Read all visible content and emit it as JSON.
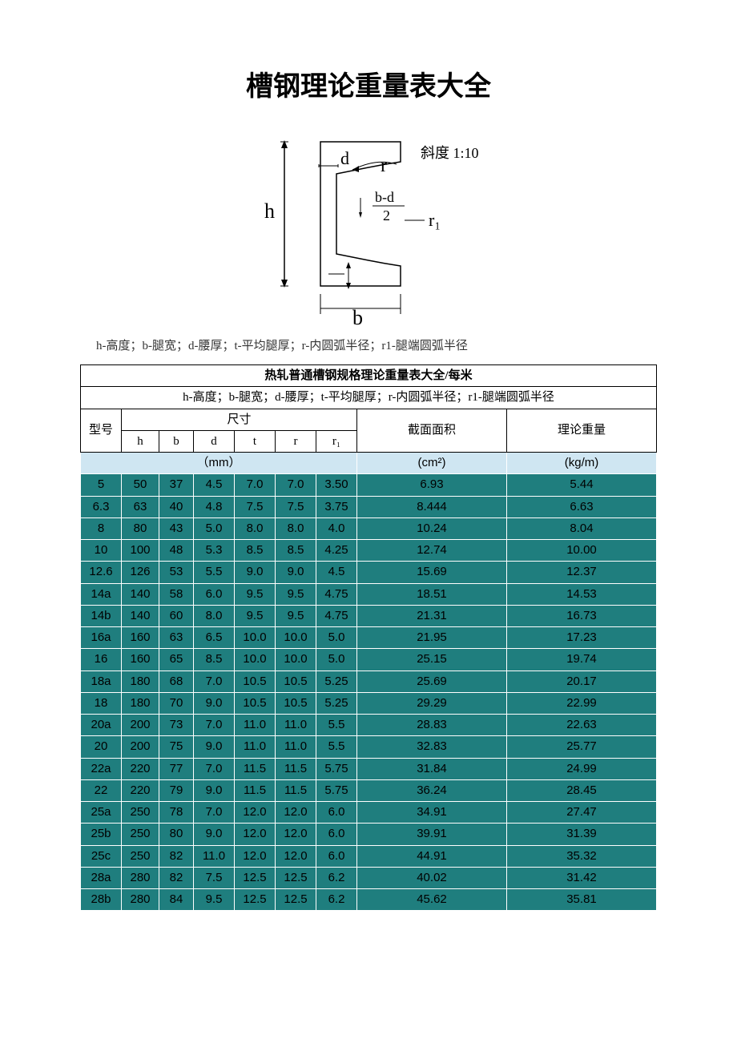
{
  "title": "槽钢理论重量表大全",
  "diagram": {
    "slope_label": "斜度 1:10",
    "h_label": "h",
    "d_label": "d",
    "r_label": "r",
    "r1_label": "r₁",
    "b_label": "b",
    "frac_top": "b-d",
    "frac_bot": "2"
  },
  "caption": "h-高度；b-腿宽；d-腰厚；t-平均腿厚；r-内圆弧半径；r1-腿端圆弧半径",
  "table": {
    "top_title": "热轧普通槽钢规格理论重量表大全/每米",
    "legend": "h-高度；b-腿宽；d-腰厚；t-平均腿厚；r-内圆弧半径；r1-腿端圆弧半径",
    "model_label": "型号",
    "size_label": "尺寸",
    "area_label": "截面面积",
    "weight_label": "理论重量",
    "h": "h",
    "b": "b",
    "d": "d",
    "t": "t",
    "r": "r",
    "r1": "r₁",
    "mm_unit": "（mm）",
    "area_unit": "(cm²)",
    "weight_unit": "(kg/m)",
    "rows": [
      [
        "5",
        "50",
        "37",
        "4.5",
        "7.0",
        "7.0",
        "3.50",
        "6.93",
        "5.44"
      ],
      [
        "6.3",
        "63",
        "40",
        "4.8",
        "7.5",
        "7.5",
        "3.75",
        "8.444",
        "6.63"
      ],
      [
        "8",
        "80",
        "43",
        "5.0",
        "8.0",
        "8.0",
        "4.0",
        "10.24",
        "8.04"
      ],
      [
        "10",
        "100",
        "48",
        "5.3",
        "8.5",
        "8.5",
        "4.25",
        "12.74",
        "10.00"
      ],
      [
        "12.6",
        "126",
        "53",
        "5.5",
        "9.0",
        "9.0",
        "4.5",
        "15.69",
        "12.37"
      ],
      [
        "14a",
        "140",
        "58",
        "6.0",
        "9.5",
        "9.5",
        "4.75",
        "18.51",
        "14.53"
      ],
      [
        "14b",
        "140",
        "60",
        "8.0",
        "9.5",
        "9.5",
        "4.75",
        "21.31",
        "16.73"
      ],
      [
        "16a",
        "160",
        "63",
        "6.5",
        "10.0",
        "10.0",
        "5.0",
        "21.95",
        "17.23"
      ],
      [
        "16",
        "160",
        "65",
        "8.5",
        "10.0",
        "10.0",
        "5.0",
        "25.15",
        "19.74"
      ],
      [
        "18a",
        "180",
        "68",
        "7.0",
        "10.5",
        "10.5",
        "5.25",
        "25.69",
        "20.17"
      ],
      [
        "18",
        "180",
        "70",
        "9.0",
        "10.5",
        "10.5",
        "5.25",
        "29.29",
        "22.99"
      ],
      [
        "20a",
        "200",
        "73",
        "7.0",
        "11.0",
        "11.0",
        "5.5",
        "28.83",
        "22.63"
      ],
      [
        "20",
        "200",
        "75",
        "9.0",
        "11.0",
        "11.0",
        "5.5",
        "32.83",
        "25.77"
      ],
      [
        "22a",
        "220",
        "77",
        "7.0",
        "11.5",
        "11.5",
        "5.75",
        "31.84",
        "24.99"
      ],
      [
        "22",
        "220",
        "79",
        "9.0",
        "11.5",
        "11.5",
        "5.75",
        "36.24",
        "28.45"
      ],
      [
        "25a",
        "250",
        "78",
        "7.0",
        "12.0",
        "12.0",
        "6.0",
        "34.91",
        "27.47"
      ],
      [
        "25b",
        "250",
        "80",
        "9.0",
        "12.0",
        "12.0",
        "6.0",
        "39.91",
        "31.39"
      ],
      [
        "25c",
        "250",
        "82",
        "11.0",
        "12.0",
        "12.0",
        "6.0",
        "44.91",
        "35.32"
      ],
      [
        "28a",
        "280",
        "82",
        "7.5",
        "12.5",
        "12.5",
        "6.2",
        "40.02",
        "31.42"
      ],
      [
        "28b",
        "280",
        "84",
        "9.5",
        "12.5",
        "12.5",
        "6.2",
        "45.62",
        "35.81"
      ]
    ]
  },
  "style": {
    "title_fontsize": 34,
    "body_bg": "#1f7e7e",
    "header_blue": "#cfe6f2",
    "header_white": "#ffffff",
    "border_white": "#ffffff",
    "border_black": "#000000",
    "text_black": "#000000"
  }
}
